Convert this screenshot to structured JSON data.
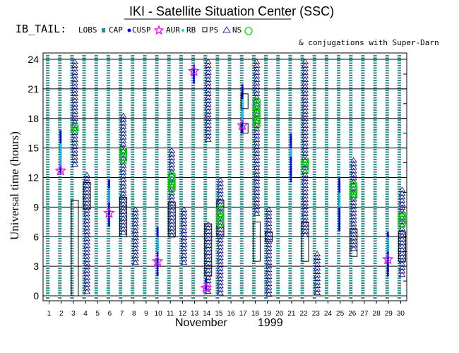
{
  "chart_data": {
    "type": "scatter",
    "title": "IKI - Satellite Situation Center (SSC)",
    "subtitle": "& conjugations with Super-Darn",
    "header_label": "IB_TAIL:",
    "legend": [
      {
        "key": "lobe",
        "label": "LOBS"
      },
      {
        "key": "cap",
        "label": "CAP"
      },
      {
        "key": "cusp",
        "label": "CUSP"
      },
      {
        "key": "aur",
        "label": "AUR"
      },
      {
        "key": "rb",
        "label": "RB"
      },
      {
        "key": "ps",
        "label": "PS"
      },
      {
        "key": "ns",
        "label": "NS"
      }
    ],
    "ylabel": "Universal time (hours)",
    "yticks": [
      0,
      3,
      6,
      9,
      12,
      15,
      18,
      21,
      24
    ],
    "ylim": [
      0,
      24
    ],
    "xlabel_month": "November",
    "xlabel_year": "1999",
    "days": [
      1,
      2,
      3,
      4,
      5,
      6,
      7,
      8,
      9,
      10,
      11,
      12,
      13,
      14,
      15,
      16,
      17,
      18,
      19,
      20,
      21,
      22,
      23,
      24,
      25,
      26,
      27,
      28,
      29,
      30
    ],
    "lobe_days": [
      1,
      2,
      3,
      4,
      5,
      6,
      7,
      8,
      9,
      10,
      11,
      12,
      13,
      14,
      15,
      16,
      17,
      18,
      19,
      20,
      21,
      22,
      23,
      24,
      25,
      26,
      27,
      28,
      29,
      30
    ],
    "tail_days": [
      3,
      4,
      7,
      8,
      11,
      12,
      14,
      15,
      18,
      19,
      22,
      23,
      26,
      27,
      30
    ],
    "regions": [
      {
        "day": 2,
        "type": "cap",
        "start": 12.5,
        "end": 16.8
      },
      {
        "day": 2,
        "type": "rb",
        "start": 13.0,
        "end": 15.5
      },
      {
        "day": 2,
        "type": "aur",
        "start": 12.7,
        "end": 12.7
      },
      {
        "day": 3,
        "type": "ns",
        "start": 13.0,
        "end": 24.0
      },
      {
        "day": 3,
        "type": "psbox",
        "start": 0,
        "end": 9.7
      },
      {
        "day": 3,
        "type": "neutral",
        "start": 16.5,
        "end": 17.5
      },
      {
        "day": 4,
        "type": "ns",
        "start": 0,
        "end": 12.5
      },
      {
        "day": 4,
        "type": "psbox",
        "start": 8.8,
        "end": 11.5
      },
      {
        "day": 6,
        "type": "cap",
        "start": 7.0,
        "end": 11.8
      },
      {
        "day": 6,
        "type": "rb",
        "start": 9.5,
        "end": 11.0
      },
      {
        "day": 6,
        "type": "aur",
        "start": 8.4,
        "end": 8.4
      },
      {
        "day": 7,
        "type": "ns",
        "start": 6.0,
        "end": 18.5
      },
      {
        "day": 7,
        "type": "psbox",
        "start": 6.0,
        "end": 10.0
      },
      {
        "day": 7,
        "type": "neutral",
        "start": 13.5,
        "end": 15.0
      },
      {
        "day": 8,
        "type": "ns",
        "start": 3.0,
        "end": 9.0
      },
      {
        "day": 10,
        "type": "cap",
        "start": 2.0,
        "end": 7.0
      },
      {
        "day": 10,
        "type": "rb",
        "start": 4.5,
        "end": 6.0
      },
      {
        "day": 10,
        "type": "aur",
        "start": 3.5,
        "end": 3.5
      },
      {
        "day": 11,
        "type": "ns",
        "start": 6.0,
        "end": 15.0
      },
      {
        "day": 11,
        "type": "psbox",
        "start": 6.0,
        "end": 9.5
      },
      {
        "day": 11,
        "type": "neutral",
        "start": 10.5,
        "end": 12.5
      },
      {
        "day": 12,
        "type": "ns",
        "start": 3.0,
        "end": 9.0
      },
      {
        "day": 13,
        "type": "cap",
        "start": 21.5,
        "end": 23.5
      },
      {
        "day": 13,
        "type": "aur",
        "start": 22.8,
        "end": 22.8
      },
      {
        "day": 14,
        "type": "ns",
        "start": 0,
        "end": 7.5
      },
      {
        "day": 14,
        "type": "ns",
        "start": 15.5,
        "end": 24.0
      },
      {
        "day": 14,
        "type": "psbox",
        "start": 2.0,
        "end": 7.3
      },
      {
        "day": 14,
        "type": "cap",
        "start": 0.5,
        "end": 1.8
      },
      {
        "day": 14,
        "type": "aur",
        "start": 0.8,
        "end": 0.8
      },
      {
        "day": 15,
        "type": "ns",
        "start": 0,
        "end": 12.0
      },
      {
        "day": 15,
        "type": "psbox",
        "start": 6.0,
        "end": 9.7
      },
      {
        "day": 15,
        "type": "neutral",
        "start": 7.0,
        "end": 9.0
      },
      {
        "day": 17,
        "type": "cap",
        "start": 16.5,
        "end": 21.5
      },
      {
        "day": 17,
        "type": "rb",
        "start": 17.5,
        "end": 20.0
      },
      {
        "day": 17,
        "type": "psbox",
        "start": 19.0,
        "end": 20.5
      },
      {
        "day": 17,
        "type": "psbox",
        "start": 16.5,
        "end": 17.5
      },
      {
        "day": 17,
        "type": "aur",
        "start": 17.3,
        "end": 17.3
      },
      {
        "day": 18,
        "type": "ns",
        "start": 8.0,
        "end": 24.0
      },
      {
        "day": 18,
        "type": "psbox",
        "start": 3.5,
        "end": 7.5
      },
      {
        "day": 18,
        "type": "neutral",
        "start": 17.0,
        "end": 20.0
      },
      {
        "day": 19,
        "type": "ns",
        "start": 0,
        "end": 9.0
      },
      {
        "day": 19,
        "type": "psbox",
        "start": 5.5,
        "end": 6.5
      },
      {
        "day": 21,
        "type": "cap",
        "start": 11.5,
        "end": 16.5
      },
      {
        "day": 21,
        "type": "rb",
        "start": 14.0,
        "end": 15.0
      },
      {
        "day": 22,
        "type": "ns",
        "start": 6.0,
        "end": 24.0
      },
      {
        "day": 22,
        "type": "psbox",
        "start": 3.5,
        "end": 7.5
      },
      {
        "day": 22,
        "type": "neutral",
        "start": 12.5,
        "end": 14.0
      },
      {
        "day": 23,
        "type": "ns",
        "start": 0,
        "end": 4.5
      },
      {
        "day": 25,
        "type": "cap",
        "start": 6.5,
        "end": 12.0
      },
      {
        "day": 25,
        "type": "rb",
        "start": 9.0,
        "end": 10.5
      },
      {
        "day": 26,
        "type": "ns",
        "start": 4.5,
        "end": 14.0
      },
      {
        "day": 26,
        "type": "psbox",
        "start": 4.0,
        "end": 6.8
      },
      {
        "day": 26,
        "type": "neutral",
        "start": 9.8,
        "end": 11.5
      },
      {
        "day": 29,
        "type": "cap",
        "start": 2.0,
        "end": 6.5
      },
      {
        "day": 29,
        "type": "rb",
        "start": 4.5,
        "end": 6.0
      },
      {
        "day": 29,
        "type": "aur",
        "start": 3.7,
        "end": 3.7
      },
      {
        "day": 30,
        "type": "ns",
        "start": 2.0,
        "end": 11.0
      },
      {
        "day": 30,
        "type": "psbox",
        "start": 3.5,
        "end": 6.5
      },
      {
        "day": 30,
        "type": "neutral",
        "start": 7.0,
        "end": 8.5
      }
    ],
    "colors": {
      "lobe": "#2e8b8b",
      "cap": "#0000ee",
      "aur": "#ff00ff",
      "rb": "#00e0e0",
      "ps": "#000000",
      "ns": "#000080",
      "neutral": "#00cc00",
      "grid": "#000000"
    }
  }
}
